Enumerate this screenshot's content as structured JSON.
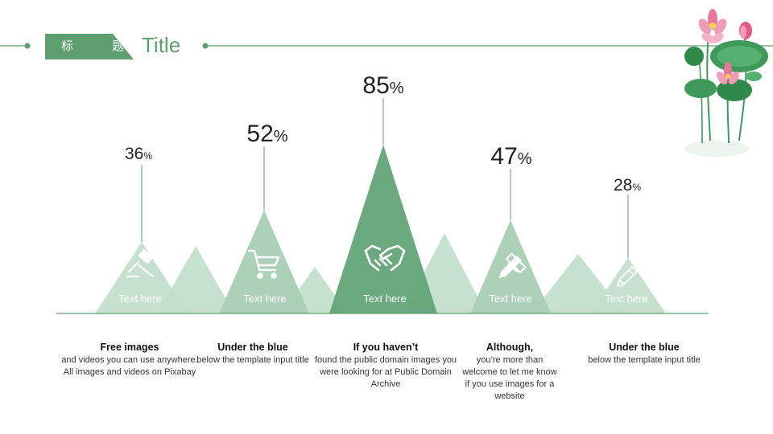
{
  "header": {
    "badge_text": "标 题",
    "title": "Title"
  },
  "colors": {
    "accent": "#5d9f6f",
    "light": "#a9cfb4",
    "pale": "#c3dfcb",
    "lotus_pink": "#e9779c",
    "leaf_green": "#3f9a5a"
  },
  "items": [
    {
      "value": 36,
      "value_text": "36",
      "unit": "%",
      "label": "Text here",
      "icon": "gavel-icon",
      "heading": "Free images",
      "body": "and videos you can use anywhere. All images and videos on Pixabay"
    },
    {
      "value": 52,
      "value_text": "52",
      "unit": "%",
      "label": "Text here",
      "icon": "shopping-cart-icon",
      "heading": "Under the blue",
      "body": "below the template input title"
    },
    {
      "value": 85,
      "value_text": "85",
      "unit": "%",
      "label": "Text here",
      "icon": "handshake-icon",
      "heading": "If you haven’t",
      "body": "found the public domain images you were looking for at Public Domain Archive"
    },
    {
      "value": 47,
      "value_text": "47",
      "unit": "%",
      "label": "Text here",
      "icon": "pencil-ruler-icon",
      "heading": "Although,",
      "body": "you’re more than welcome to let me know if you use images for a website"
    },
    {
      "value": 28,
      "value_text": "28",
      "unit": "%",
      "label": "Text here",
      "icon": "pencil-icon",
      "heading": "Under the blue",
      "body": "below the template input title"
    }
  ]
}
